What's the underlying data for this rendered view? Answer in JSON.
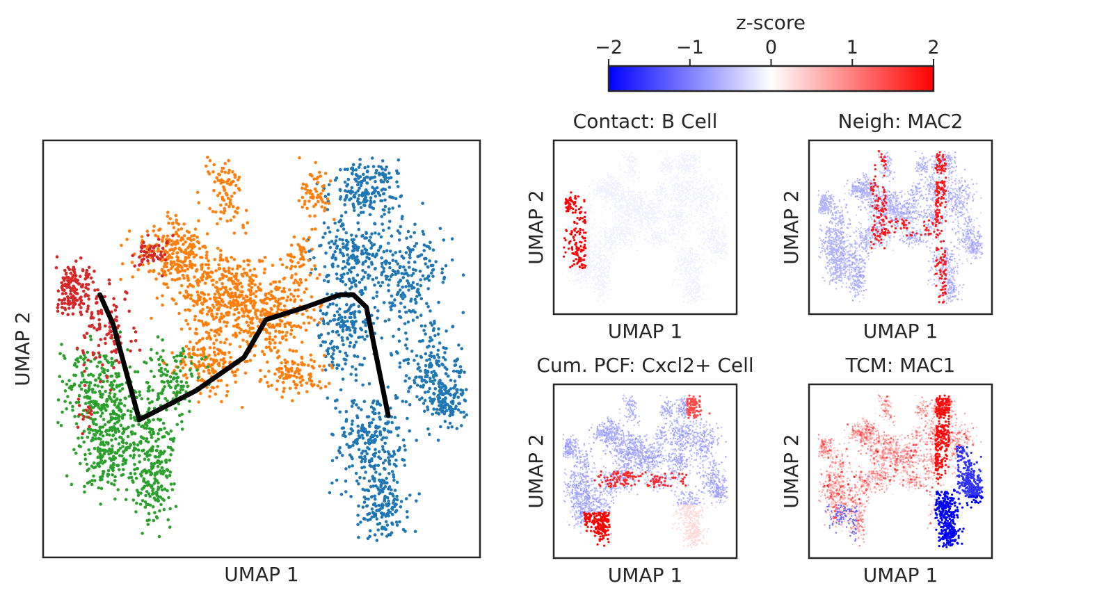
{
  "chart_data": [
    {
      "type": "scatter",
      "title": "",
      "xlabel": "UMAP 1",
      "ylabel": "UMAP 2",
      "grid": false,
      "legend": "none",
      "series": [
        {
          "color": "#1f77b4"
        },
        {
          "color": "#ff7f0e"
        },
        {
          "color": "#2ca02c"
        },
        {
          "color": "#d62728"
        }
      ],
      "trajectory": {
        "color": "#000000",
        "x": [
          1.3,
          1.6,
          2.2,
          3.5,
          4.6,
          5.1,
          6.0,
          6.8,
          7.1,
          7.4,
          7.9
        ],
        "y": [
          6.3,
          5.6,
          3.3,
          4.0,
          4.8,
          5.7,
          6.0,
          6.3,
          6.3,
          6.0,
          3.4
        ]
      }
    },
    {
      "type": "heatmap",
      "colorbar": {
        "label": "z-score",
        "ticks": [
          "−2",
          "−1",
          "0",
          "1",
          "2"
        ],
        "range": [
          -2,
          2
        ],
        "colormap": "bwr",
        "colors": [
          "#0000ff",
          "#ffffff",
          "#ff0000"
        ]
      },
      "panels": [
        {
          "title": "Contact: B Cell",
          "xlabel": "UMAP 1",
          "ylabel": "UMAP 2"
        },
        {
          "title": "Neigh: MAC2",
          "xlabel": "UMAP 1",
          "ylabel": "UMAP 2"
        },
        {
          "title": "Cum. PCF: Cxcl2+ Cell",
          "xlabel": "UMAP 1",
          "ylabel": "UMAP 2"
        },
        {
          "title": "TCM: MAC1",
          "xlabel": "UMAP 1",
          "ylabel": "UMAP 2"
        }
      ]
    }
  ]
}
